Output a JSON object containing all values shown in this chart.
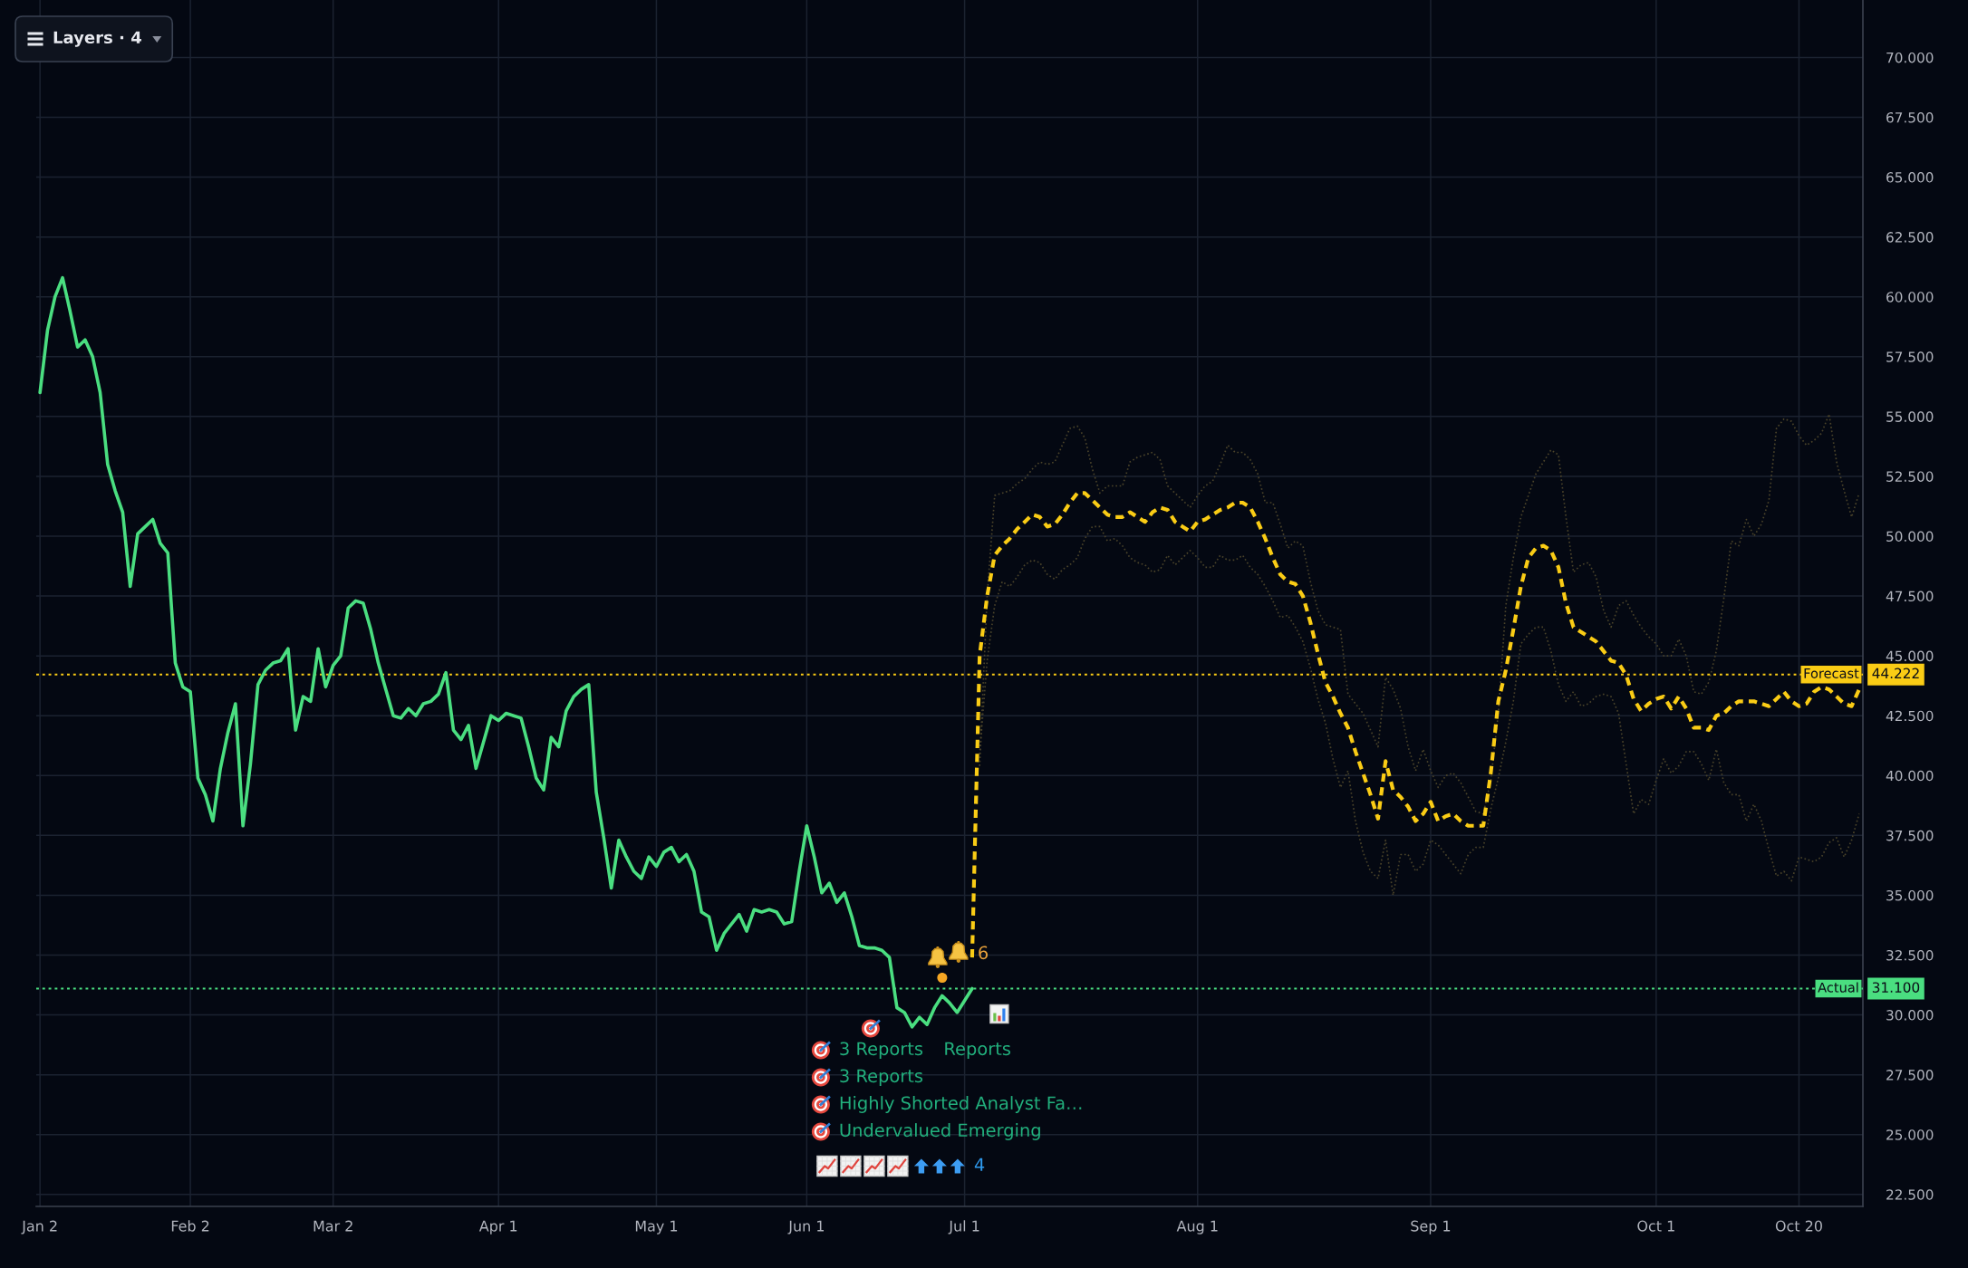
{
  "chart_data": {
    "type": "line",
    "categories": [
      "Jan 2",
      null,
      null,
      null,
      null,
      null,
      null,
      null,
      null,
      null,
      null,
      null,
      null,
      null,
      null,
      null,
      null,
      null,
      null,
      null,
      "Feb 2",
      null,
      null,
      null,
      null,
      null,
      null,
      null,
      null,
      null,
      null,
      null,
      null,
      null,
      null,
      null,
      null,
      null,
      null,
      "Mar 2",
      null,
      null,
      null,
      null,
      null,
      null,
      null,
      null,
      null,
      null,
      null,
      null,
      null,
      null,
      null,
      null,
      null,
      null,
      null,
      null,
      null,
      "Apr 1",
      null,
      null,
      null,
      null,
      null,
      null,
      null,
      null,
      null,
      null,
      null,
      null,
      null,
      null,
      null,
      null,
      null,
      null,
      null,
      null,
      "May 1",
      null,
      null,
      null,
      null,
      null,
      null,
      null,
      null,
      null,
      null,
      null,
      null,
      null,
      null,
      null,
      null,
      null,
      null,
      null,
      "Jun 1",
      null,
      null,
      null,
      null,
      null,
      null,
      null,
      null,
      null,
      null,
      null,
      null,
      null,
      null,
      null,
      null,
      null,
      null,
      null,
      null,
      "Jul 1",
      null,
      null,
      null,
      null,
      null,
      null,
      null,
      null,
      null,
      null,
      null,
      null,
      null,
      null,
      null,
      null,
      null,
      null,
      null,
      null,
      null,
      null,
      null,
      null,
      null,
      null,
      null,
      null,
      null,
      null,
      "Aug 1",
      null,
      null,
      null,
      null,
      null,
      null,
      null,
      null,
      null,
      null,
      null,
      null,
      null,
      null,
      null,
      null,
      null,
      null,
      null,
      null,
      null,
      null,
      null,
      null,
      null,
      null,
      null,
      null,
      null,
      null,
      "Sep 1",
      null,
      null,
      null,
      null,
      null,
      null,
      null,
      null,
      null,
      null,
      null,
      null,
      null,
      null,
      null,
      null,
      null,
      null,
      null,
      null,
      null,
      null,
      null,
      null,
      null,
      null,
      null,
      null,
      null,
      "Oct 1",
      null,
      null,
      null,
      null,
      null,
      null,
      null,
      null,
      null,
      null,
      null,
      null,
      null,
      null,
      null,
      null,
      null,
      null,
      "Oct 20",
      null,
      null,
      null,
      null,
      null,
      null,
      null,
      null
    ],
    "ylim": [
      22.0,
      72.4
    ],
    "yticks": [
      {
        "value": 22.5,
        "label": "22.500"
      },
      {
        "value": 25,
        "label": "25.000"
      },
      {
        "value": 27.5,
        "label": "27.500"
      },
      {
        "value": 30,
        "label": "30.000"
      },
      {
        "value": 32.5,
        "label": "32.500"
      },
      {
        "value": 35,
        "label": "35.000"
      },
      {
        "value": 37.5,
        "label": "37.500"
      },
      {
        "value": 40,
        "label": "40.000"
      },
      {
        "value": 42.5,
        "label": "42.500"
      },
      {
        "value": 45,
        "label": "45.000"
      },
      {
        "value": 47.5,
        "label": "47.500"
      },
      {
        "value": 50,
        "label": "50.000"
      },
      {
        "value": 52.5,
        "label": "52.500"
      },
      {
        "value": 55,
        "label": "55.000"
      },
      {
        "value": 57.5,
        "label": "57.500"
      },
      {
        "value": 60,
        "label": "60.000"
      },
      {
        "value": 62.5,
        "label": "62.500"
      },
      {
        "value": 65,
        "label": "65.000"
      },
      {
        "value": 67.5,
        "label": "67.500"
      },
      {
        "value": 70,
        "label": "70.000"
      }
    ],
    "grid": true,
    "series": [
      {
        "color": "#4ade80",
        "line_style": "solid",
        "values": [
          56.0,
          58.6,
          60.0,
          60.8,
          59.4,
          57.9,
          58.2,
          57.5,
          56.0,
          53.0,
          51.9,
          51.0,
          47.9,
          50.1,
          50.4,
          50.7,
          49.7,
          49.3,
          44.7,
          43.7,
          43.5,
          39.9,
          39.2,
          38.1,
          40.3,
          41.8,
          43.0,
          37.9,
          40.5,
          43.8,
          44.4,
          44.7,
          44.8,
          45.3,
          41.9,
          43.3,
          43.1,
          45.3,
          43.7,
          44.6,
          45.0,
          47.0,
          47.3,
          47.2,
          46.1,
          44.7,
          43.6,
          42.5,
          42.4,
          42.8,
          42.5,
          43.0,
          43.1,
          43.4,
          44.3,
          41.9,
          41.5,
          42.1,
          40.3,
          41.4,
          42.5,
          42.3,
          42.6,
          42.5,
          42.4,
          41.2,
          39.9,
          39.4,
          41.6,
          41.2,
          42.7,
          43.3,
          43.6,
          43.8,
          39.3,
          37.4,
          35.3,
          37.3,
          36.6,
          36.0,
          35.7,
          36.6,
          36.2,
          36.8,
          37.0,
          36.4,
          36.7,
          36.0,
          34.3,
          34.1,
          32.7,
          33.4,
          33.8,
          34.2,
          33.5,
          34.4,
          34.3,
          34.4,
          34.3,
          33.8,
          33.9,
          36.0,
          37.9,
          36.6,
          35.1,
          35.5,
          34.7,
          35.1,
          34.1,
          32.9,
          32.8,
          32.8,
          32.7,
          32.4,
          30.3,
          30.1,
          29.5,
          29.9,
          29.6,
          30.3,
          30.8,
          30.5,
          30.1,
          30.6,
          31.1,
          null,
          null,
          null,
          null,
          null,
          null,
          null,
          null,
          null,
          null,
          null,
          null,
          null,
          null,
          null,
          null,
          null,
          null,
          null,
          null,
          null,
          null,
          null,
          null,
          null,
          null,
          null,
          null,
          null,
          null,
          null,
          null,
          null,
          null,
          null,
          null,
          null,
          null,
          null,
          null,
          null,
          null,
          null,
          null,
          null,
          null,
          null,
          null,
          null,
          null,
          null,
          null,
          null,
          null,
          null,
          null,
          null,
          null,
          null,
          null,
          null,
          null,
          null,
          null,
          null,
          null,
          null,
          null,
          null,
          null,
          null,
          null,
          null,
          null,
          null,
          null,
          null,
          null,
          null,
          null,
          null,
          null,
          null,
          null,
          null,
          null,
          null,
          null,
          null,
          null,
          null,
          null,
          null,
          null,
          null,
          null,
          null,
          null,
          null,
          null,
          null,
          null,
          null,
          null,
          null,
          null,
          null,
          null,
          null,
          null,
          null,
          null,
          null,
          null,
          null,
          null,
          null,
          null
        ]
      },
      {
        "color": "#facc15",
        "line_style": "dashed",
        "values": [
          null,
          null,
          null,
          null,
          null,
          null,
          null,
          null,
          null,
          null,
          null,
          null,
          null,
          null,
          null,
          null,
          null,
          null,
          null,
          null,
          null,
          null,
          null,
          null,
          null,
          null,
          null,
          null,
          null,
          null,
          null,
          null,
          null,
          null,
          null,
          null,
          null,
          null,
          null,
          null,
          null,
          null,
          null,
          null,
          null,
          null,
          null,
          null,
          null,
          null,
          null,
          null,
          null,
          null,
          null,
          null,
          null,
          null,
          null,
          null,
          null,
          null,
          null,
          null,
          null,
          null,
          null,
          null,
          null,
          null,
          null,
          null,
          null,
          null,
          null,
          null,
          null,
          null,
          null,
          null,
          null,
          null,
          null,
          null,
          null,
          null,
          null,
          null,
          null,
          null,
          null,
          null,
          null,
          null,
          null,
          null,
          null,
          null,
          null,
          null,
          null,
          null,
          null,
          null,
          null,
          null,
          null,
          null,
          null,
          null,
          null,
          null,
          null,
          null,
          null,
          null,
          null,
          null,
          null,
          null,
          null,
          null,
          null,
          null,
          32.4,
          45.0,
          47.5,
          49.2,
          49.6,
          49.9,
          50.3,
          50.6,
          50.9,
          50.8,
          50.4,
          50.5,
          50.9,
          51.4,
          51.8,
          51.8,
          51.5,
          51.2,
          50.9,
          50.8,
          50.8,
          51.0,
          50.8,
          50.6,
          51.0,
          51.2,
          51.1,
          50.6,
          50.4,
          50.2,
          50.6,
          50.7,
          50.9,
          51.1,
          51.2,
          51.4,
          51.4,
          51.2,
          50.6,
          49.9,
          49.1,
          48.4,
          48.1,
          48.0,
          47.5,
          46.4,
          45.1,
          43.9,
          43.3,
          42.6,
          42.0,
          41.0,
          40.1,
          39.2,
          38.2,
          40.6,
          39.4,
          39.1,
          38.7,
          38.1,
          38.4,
          38.9,
          38.1,
          38.3,
          38.4,
          38.1,
          37.9,
          37.9,
          37.9,
          40.1,
          43.1,
          44.4,
          46.1,
          47.9,
          49.1,
          49.5,
          49.6,
          49.4,
          48.7,
          47.2,
          46.2,
          46.0,
          45.8,
          45.6,
          45.2,
          44.8,
          44.7,
          44.2,
          43.2,
          42.7,
          43.0,
          43.2,
          43.3,
          42.8,
          43.3,
          42.8,
          42.0,
          42.0,
          41.9,
          42.5,
          42.6,
          42.9,
          43.1,
          43.1,
          43.1,
          43.0,
          42.9,
          43.2,
          43.5,
          43.1,
          42.9,
          43.0,
          43.5,
          43.7,
          43.6,
          43.3,
          43.0,
          42.9,
          43.6
        ]
      },
      {
        "color": "#4a432a",
        "line_style": "dotted",
        "values": [
          null,
          null,
          null,
          null,
          null,
          null,
          null,
          null,
          null,
          null,
          null,
          null,
          null,
          null,
          null,
          null,
          null,
          null,
          null,
          null,
          null,
          null,
          null,
          null,
          null,
          null,
          null,
          null,
          null,
          null,
          null,
          null,
          null,
          null,
          null,
          null,
          null,
          null,
          null,
          null,
          null,
          null,
          null,
          null,
          null,
          null,
          null,
          null,
          null,
          null,
          null,
          null,
          null,
          null,
          null,
          null,
          null,
          null,
          null,
          null,
          null,
          null,
          null,
          null,
          null,
          null,
          null,
          null,
          null,
          null,
          null,
          null,
          null,
          null,
          null,
          null,
          null,
          null,
          null,
          null,
          null,
          null,
          null,
          null,
          null,
          null,
          null,
          null,
          null,
          null,
          null,
          null,
          null,
          null,
          null,
          null,
          null,
          null,
          null,
          null,
          null,
          null,
          null,
          null,
          null,
          null,
          null,
          null,
          null,
          null,
          null,
          null,
          null,
          null,
          null,
          null,
          null,
          null,
          null,
          null,
          null,
          null,
          null,
          null,
          null,
          40.4,
          47.5,
          51.7,
          51.8,
          51.9,
          52.2,
          52.4,
          52.8,
          53.1,
          53.0,
          53.1,
          53.8,
          54.5,
          54.6,
          54.1,
          52.8,
          51.8,
          52.1,
          52.1,
          52.1,
          53.1,
          53.3,
          53.4,
          53.5,
          53.2,
          52.1,
          51.8,
          51.5,
          51.2,
          51.7,
          52.1,
          52.3,
          53.0,
          53.8,
          53.5,
          53.5,
          53.2,
          52.6,
          51.4,
          51.4,
          50.5,
          49.5,
          49.8,
          49.6,
          48.1,
          46.9,
          46.3,
          46.2,
          46.1,
          43.4,
          43.0,
          42.6,
          41.9,
          41.2,
          44.1,
          43.6,
          42.8,
          41.2,
          40.2,
          41.1,
          40.2,
          39.5,
          40.0,
          40.1,
          39.7,
          39.1,
          38.5,
          38.4,
          39.8,
          42.6,
          47.1,
          49.1,
          50.8,
          51.7,
          52.6,
          53.1,
          53.6,
          53.4,
          50.8,
          48.5,
          48.8,
          48.9,
          48.3,
          46.9,
          46.2,
          47.1,
          47.3,
          46.7,
          46.2,
          45.8,
          45.5,
          45.0,
          45.0,
          45.7,
          45.0,
          43.5,
          43.4,
          43.9,
          45.2,
          47.4,
          49.8,
          49.6,
          50.7,
          50.0,
          50.5,
          51.5,
          54.5,
          54.9,
          54.8,
          54.2,
          53.8,
          54.0,
          54.3,
          55.1,
          53.1,
          51.9,
          50.8,
          51.8
        ]
      },
      {
        "color": "#4a432a",
        "line_style": "dotted",
        "values": [
          null,
          null,
          null,
          null,
          null,
          null,
          null,
          null,
          null,
          null,
          null,
          null,
          null,
          null,
          null,
          null,
          null,
          null,
          null,
          null,
          null,
          null,
          null,
          null,
          null,
          null,
          null,
          null,
          null,
          null,
          null,
          null,
          null,
          null,
          null,
          null,
          null,
          null,
          null,
          null,
          null,
          null,
          null,
          null,
          null,
          null,
          null,
          null,
          null,
          null,
          null,
          null,
          null,
          null,
          null,
          null,
          null,
          null,
          null,
          null,
          null,
          null,
          null,
          null,
          null,
          null,
          null,
          null,
          null,
          null,
          null,
          null,
          null,
          null,
          null,
          null,
          null,
          null,
          null,
          null,
          null,
          null,
          null,
          null,
          null,
          null,
          null,
          null,
          null,
          null,
          null,
          null,
          null,
          null,
          null,
          null,
          null,
          null,
          null,
          null,
          null,
          null,
          null,
          null,
          null,
          null,
          null,
          null,
          null,
          null,
          null,
          null,
          null,
          null,
          null,
          null,
          null,
          null,
          null,
          null,
          null,
          null,
          null,
          null,
          null,
          40.9,
          44.8,
          47.1,
          48.1,
          47.9,
          48.3,
          48.8,
          49.0,
          48.9,
          48.4,
          48.2,
          48.6,
          48.8,
          49.1,
          49.9,
          50.4,
          50.4,
          49.8,
          49.9,
          49.6,
          49.1,
          48.9,
          48.8,
          48.5,
          48.6,
          49.2,
          48.8,
          49.1,
          49.4,
          49.1,
          48.7,
          48.7,
          49.2,
          49.0,
          49.0,
          49.2,
          48.7,
          48.4,
          47.9,
          47.3,
          46.6,
          46.7,
          46.2,
          45.6,
          44.5,
          43.2,
          42.2,
          40.7,
          39.5,
          40.2,
          38.1,
          36.8,
          36.0,
          35.7,
          37.3,
          35.0,
          36.7,
          36.7,
          36.0,
          36.3,
          37.3,
          37.1,
          36.7,
          36.3,
          35.9,
          36.7,
          37.0,
          37.0,
          38.6,
          39.9,
          41.4,
          43.1,
          45.5,
          45.9,
          46.2,
          46.2,
          45.2,
          43.8,
          43.1,
          43.5,
          42.9,
          43.0,
          43.3,
          43.4,
          43.3,
          42.6,
          40.5,
          38.4,
          39.0,
          38.8,
          39.8,
          40.7,
          40.1,
          40.4,
          41.0,
          41.0,
          40.5,
          39.8,
          41.1,
          39.7,
          39.2,
          39.2,
          38.1,
          38.8,
          38.1,
          36.9,
          35.8,
          36.0,
          35.6,
          36.6,
          36.5,
          36.4,
          36.6,
          37.2,
          37.4,
          36.6,
          37.3,
          38.4
        ]
      }
    ],
    "ref_lines": [
      {
        "axis": "y",
        "value": 44.222,
        "label": "Forecast",
        "color": "#facc15",
        "line_style": "dotted"
      },
      {
        "axis": "y",
        "value": 31.1,
        "label": "Actual",
        "color": "#4ade80",
        "line_style": "dotted"
      }
    ],
    "annotations": [
      "Layers · 4",
      "6",
      "3 Reports",
      "Reports",
      "3 Reports",
      "Highly Shorted Analyst Fa…",
      "Undervalued Emerging",
      "4",
      "44.222",
      "31.100"
    ]
  }
}
